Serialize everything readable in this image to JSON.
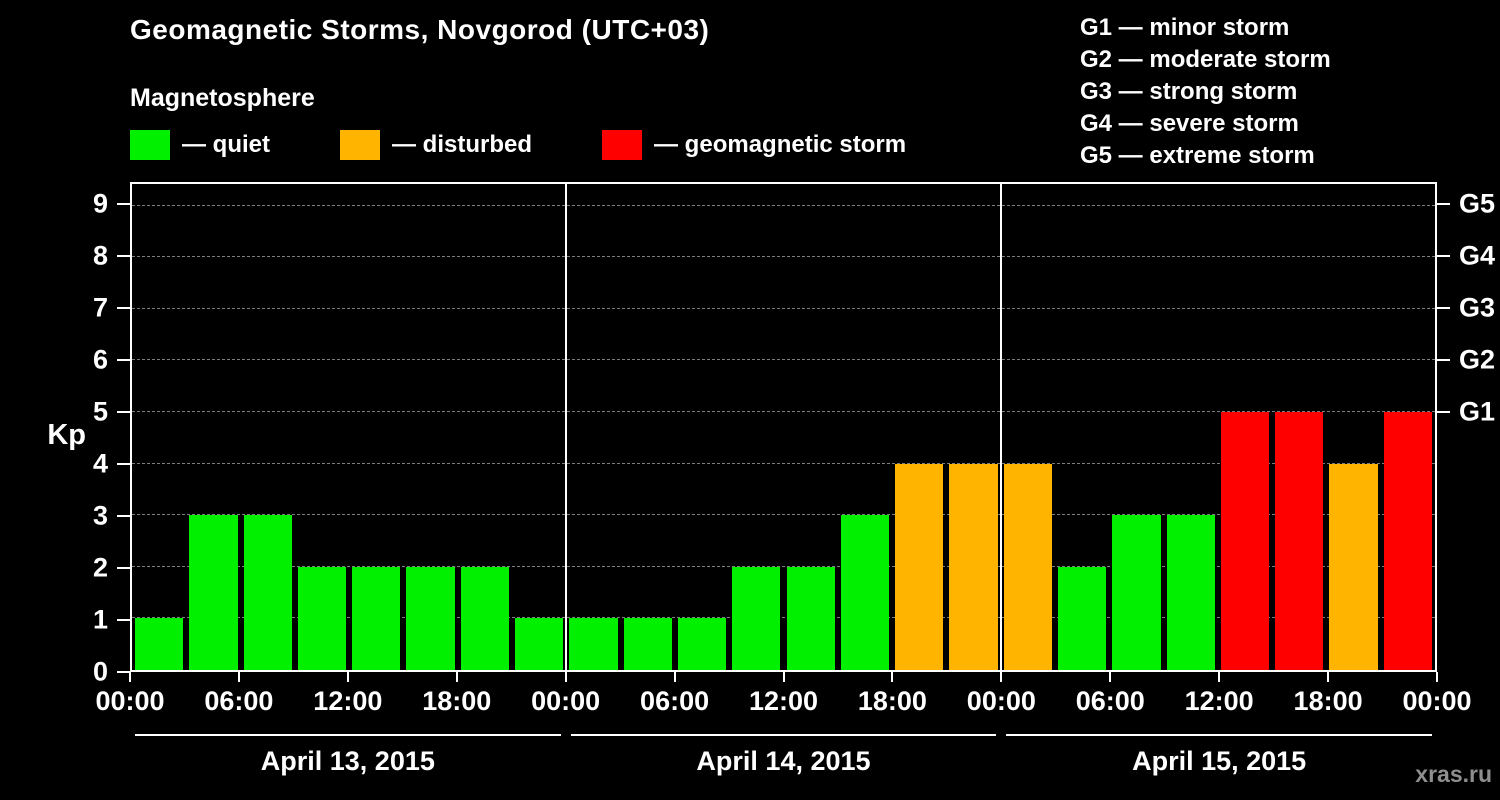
{
  "header": {
    "title": "Geomagnetic Storms, Novgorod (UTC+03)",
    "subtitle": "Magnetosphere"
  },
  "legend": {
    "items": [
      {
        "key": "quiet",
        "label": "— quiet",
        "color": "#00f000"
      },
      {
        "key": "disturbed",
        "label": "— disturbed",
        "color": "#ffb400"
      },
      {
        "key": "storm",
        "label": "— geomagnetic storm",
        "color": "#ff0000"
      }
    ]
  },
  "storm_scale": {
    "items": [
      "G1 — minor storm",
      "G2 — moderate storm",
      "G3 — strong storm",
      "G4 — severe storm",
      "G5 — extreme storm"
    ]
  },
  "watermark": "xras.ru",
  "chart_data": {
    "type": "bar",
    "ylabel": "Kp",
    "ylim": [
      0,
      9.42
    ],
    "yticks": [
      0,
      1,
      2,
      3,
      4,
      5,
      6,
      7,
      8,
      9
    ],
    "right_ticks": [
      {
        "label": "G1",
        "value": 5
      },
      {
        "label": "G2",
        "value": 6
      },
      {
        "label": "G3",
        "value": 7
      },
      {
        "label": "G4",
        "value": 8
      },
      {
        "label": "G5",
        "value": 9
      }
    ],
    "x_tick_labels": [
      "00:00",
      "06:00",
      "12:00",
      "18:00",
      "00:00",
      "06:00",
      "12:00",
      "18:00",
      "00:00",
      "06:00",
      "12:00",
      "18:00",
      "00:00"
    ],
    "hours_per_bar": 3,
    "days": [
      {
        "date": "April 13, 2015",
        "values": [
          1,
          3,
          3,
          2,
          2,
          2,
          2,
          1
        ]
      },
      {
        "date": "April 14, 2015",
        "values": [
          1,
          1,
          1,
          2,
          2,
          3,
          4,
          4
        ]
      },
      {
        "date": "April 15, 2015",
        "values": [
          4,
          2,
          3,
          3,
          5,
          5,
          4,
          5
        ]
      }
    ],
    "color_rules": {
      "quiet_max_kp": 3,
      "disturbed_kp": 4,
      "storm_min_kp": 5
    },
    "colors": {
      "quiet": "#00f000",
      "disturbed": "#ffb400",
      "storm": "#ff0000"
    },
    "grid": "dashed horizontal lines at integer Kp values",
    "legend_position": "top-left"
  }
}
